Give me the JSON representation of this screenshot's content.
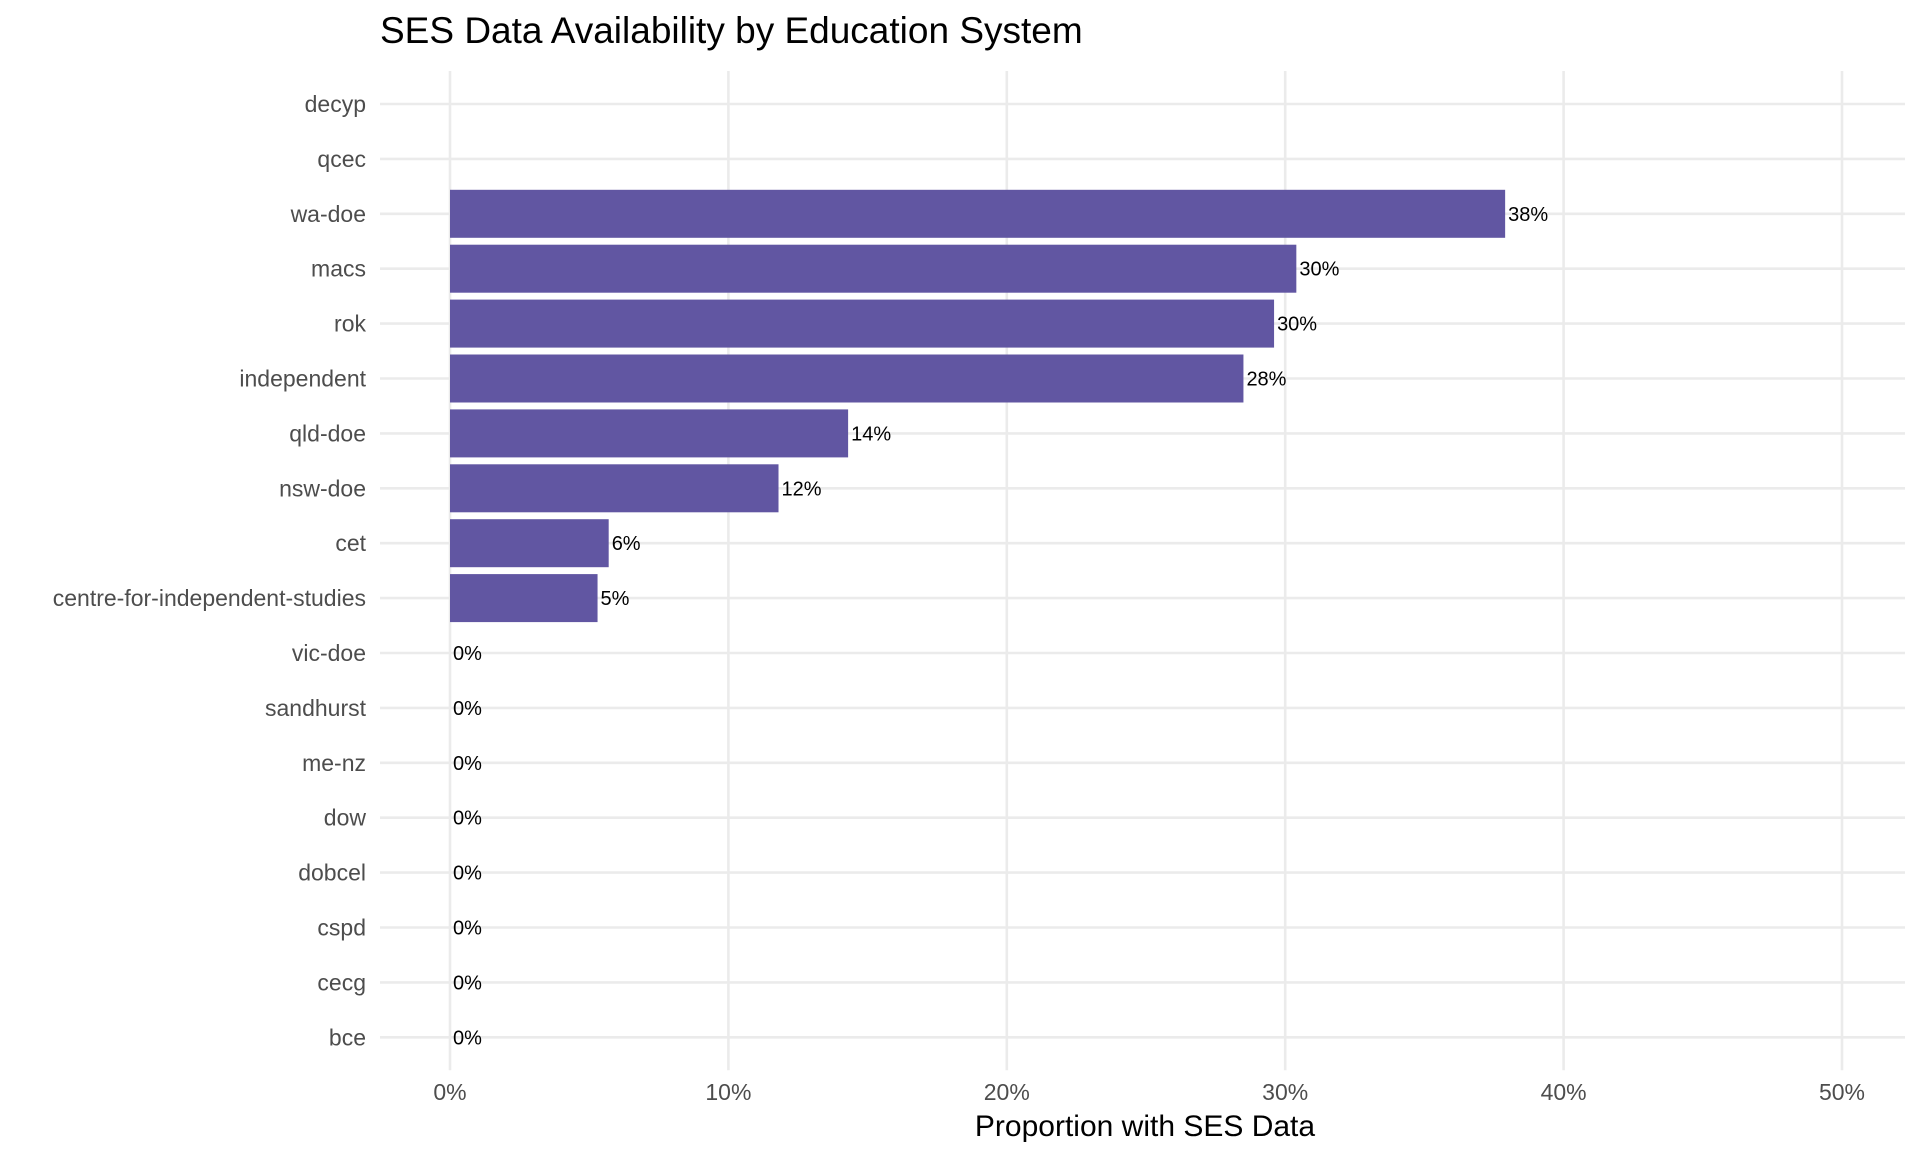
{
  "chart_data": {
    "type": "bar",
    "orientation": "horizontal",
    "title": "SES Data Availability by Education System",
    "xlabel": "Proportion with SES Data",
    "ylabel": "",
    "xlim": [
      0,
      0.5
    ],
    "x_ticks": [
      "0%",
      "10%",
      "20%",
      "30%",
      "40%",
      "50%"
    ],
    "categories": [
      "decyp",
      "qcec",
      "wa-doe",
      "macs",
      "rok",
      "independent",
      "qld-doe",
      "nsw-doe",
      "cet",
      "centre-for-independent-studies",
      "vic-doe",
      "sandhurst",
      "me-nz",
      "dow",
      "dobcel",
      "cspd",
      "cecg",
      "bce"
    ],
    "values": [
      null,
      null,
      0.379,
      0.304,
      0.296,
      0.285,
      0.143,
      0.118,
      0.057,
      0.053,
      0,
      0,
      0,
      0,
      0,
      0,
      0,
      0
    ],
    "labels": [
      "",
      "",
      "38%",
      "30%",
      "30%",
      "28%",
      "14%",
      "12%",
      "6%",
      "5%",
      "0%",
      "0%",
      "0%",
      "0%",
      "0%",
      "0%",
      "0%",
      "0%"
    ],
    "bar_color": "#6156a2",
    "grid": true,
    "legend": "none"
  }
}
